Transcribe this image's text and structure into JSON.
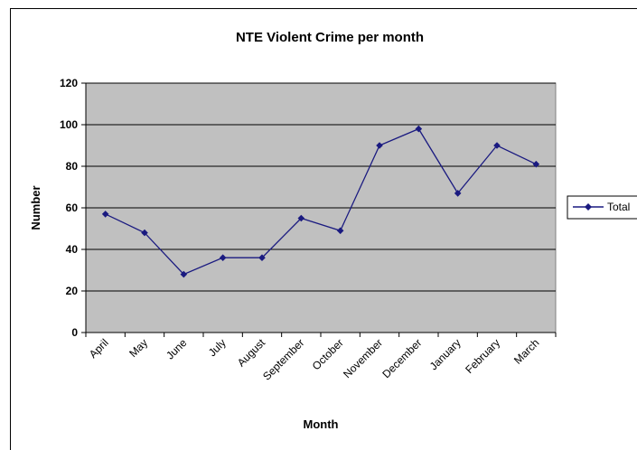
{
  "chart_data": {
    "type": "line",
    "title": "NTE Violent Crime per month",
    "xlabel": "Month",
    "ylabel": "Number",
    "categories": [
      "April",
      "May",
      "June",
      "July",
      "August",
      "September",
      "October",
      "November",
      "December",
      "January",
      "February",
      "March"
    ],
    "series": [
      {
        "name": "Total",
        "values": [
          57,
          48,
          28,
          36,
          36,
          55,
          49,
          90,
          98,
          67,
          90,
          81
        ],
        "color": "#1a1a80"
      }
    ],
    "ylim": [
      0,
      120
    ],
    "yticks": [
      0,
      20,
      40,
      60,
      80,
      100,
      120
    ],
    "grid": true,
    "legend_position": "right",
    "plot_background": "#c0c0c0"
  }
}
